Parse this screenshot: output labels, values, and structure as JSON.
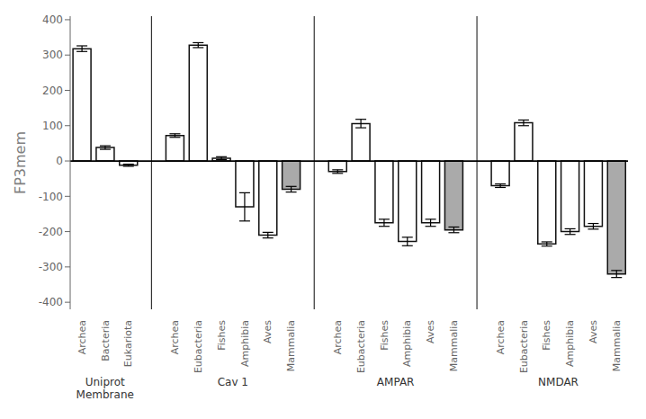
{
  "chart_data": {
    "type": "bar",
    "ylabel": "FP3mem",
    "categories": [
      "Archea",
      "Bacteria",
      "Eukariota",
      "Archea",
      "Eubacteria",
      "Fishes",
      "Amphibia",
      "Aves",
      "Mammalia",
      "Archea",
      "Eubacteria",
      "Fishes",
      "Amphibia",
      "Aves",
      "Mammalia",
      "Archea",
      "Eubacteria",
      "Fishes",
      "Amphibia",
      "Aves",
      "Mammalia"
    ],
    "groups": [
      "Uniprot\nMembrane",
      "Uniprot\nMembrane",
      "Uniprot\nMembrane",
      "Cav 1",
      "Cav 1",
      "Cav 1",
      "Cav 1",
      "Cav 1",
      "Cav 1",
      "AMPAR",
      "AMPAR",
      "AMPAR",
      "AMPAR",
      "AMPAR",
      "AMPAR",
      "NMDAR",
      "NMDAR",
      "NMDAR",
      "NMDAR",
      "NMDAR",
      "NMDAR"
    ],
    "values": [
      318,
      38,
      -12,
      72,
      328,
      8,
      -130,
      -210,
      -80,
      -30,
      106,
      -175,
      -228,
      -175,
      -195,
      -70,
      108,
      -235,
      -200,
      -185,
      -320
    ],
    "errors": [
      8,
      5,
      3,
      5,
      7,
      4,
      40,
      8,
      8,
      5,
      12,
      10,
      12,
      10,
      8,
      5,
      8,
      6,
      8,
      8,
      10
    ],
    "colors": [
      "white",
      "white",
      "white",
      "white",
      "white",
      "white",
      "white",
      "white",
      "#aaaaaa",
      "white",
      "white",
      "white",
      "white",
      "white",
      "#aaaaaa",
      "white",
      "white",
      "white",
      "white",
      "white",
      "#aaaaaa"
    ],
    "ylim": [
      -420,
      410
    ],
    "yticks": [
      -400,
      -300,
      -200,
      -100,
      0,
      100,
      200,
      300,
      400
    ],
    "grid": false
  }
}
